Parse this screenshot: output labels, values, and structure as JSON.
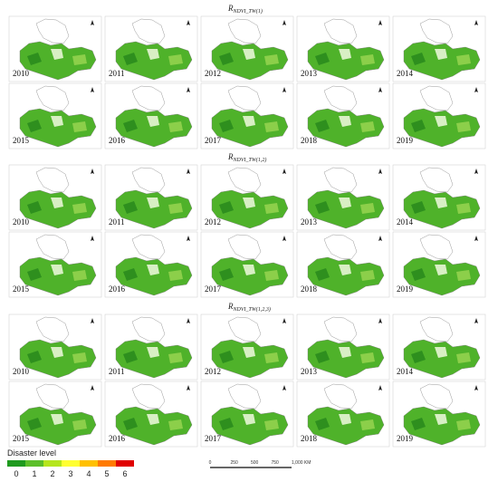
{
  "groups": [
    {
      "title": "R",
      "subscript": "NDVI_TW(1)",
      "panels": [
        "2010",
        "2011",
        "2012",
        "2013",
        "2014",
        "2015",
        "2016",
        "2017",
        "2018",
        "2019"
      ]
    },
    {
      "title": "R",
      "subscript": "NDVI_TW(1,2)",
      "panels": [
        "2010",
        "2011",
        "2012",
        "2013",
        "2014",
        "2015",
        "2016",
        "2017",
        "2018",
        "2019"
      ]
    },
    {
      "title": "R",
      "subscript": "NDVI_TW(1,2,3)",
      "panels": [
        "2010",
        "2011",
        "2012",
        "2013",
        "2014",
        "2015",
        "2016",
        "2017",
        "2018",
        "2019"
      ]
    }
  ],
  "legend": {
    "title": "Disaster level",
    "levels": [
      "0",
      "1",
      "2",
      "3",
      "4",
      "5",
      "6"
    ],
    "colors": [
      "#1f9a1f",
      "#5cbf2a",
      "#b5e61d",
      "#ffff33",
      "#ffc000",
      "#ff7a00",
      "#e00000"
    ]
  },
  "scale_bar": {
    "labels": [
      "0",
      "250",
      "500",
      "750",
      "1,000 KM"
    ]
  }
}
